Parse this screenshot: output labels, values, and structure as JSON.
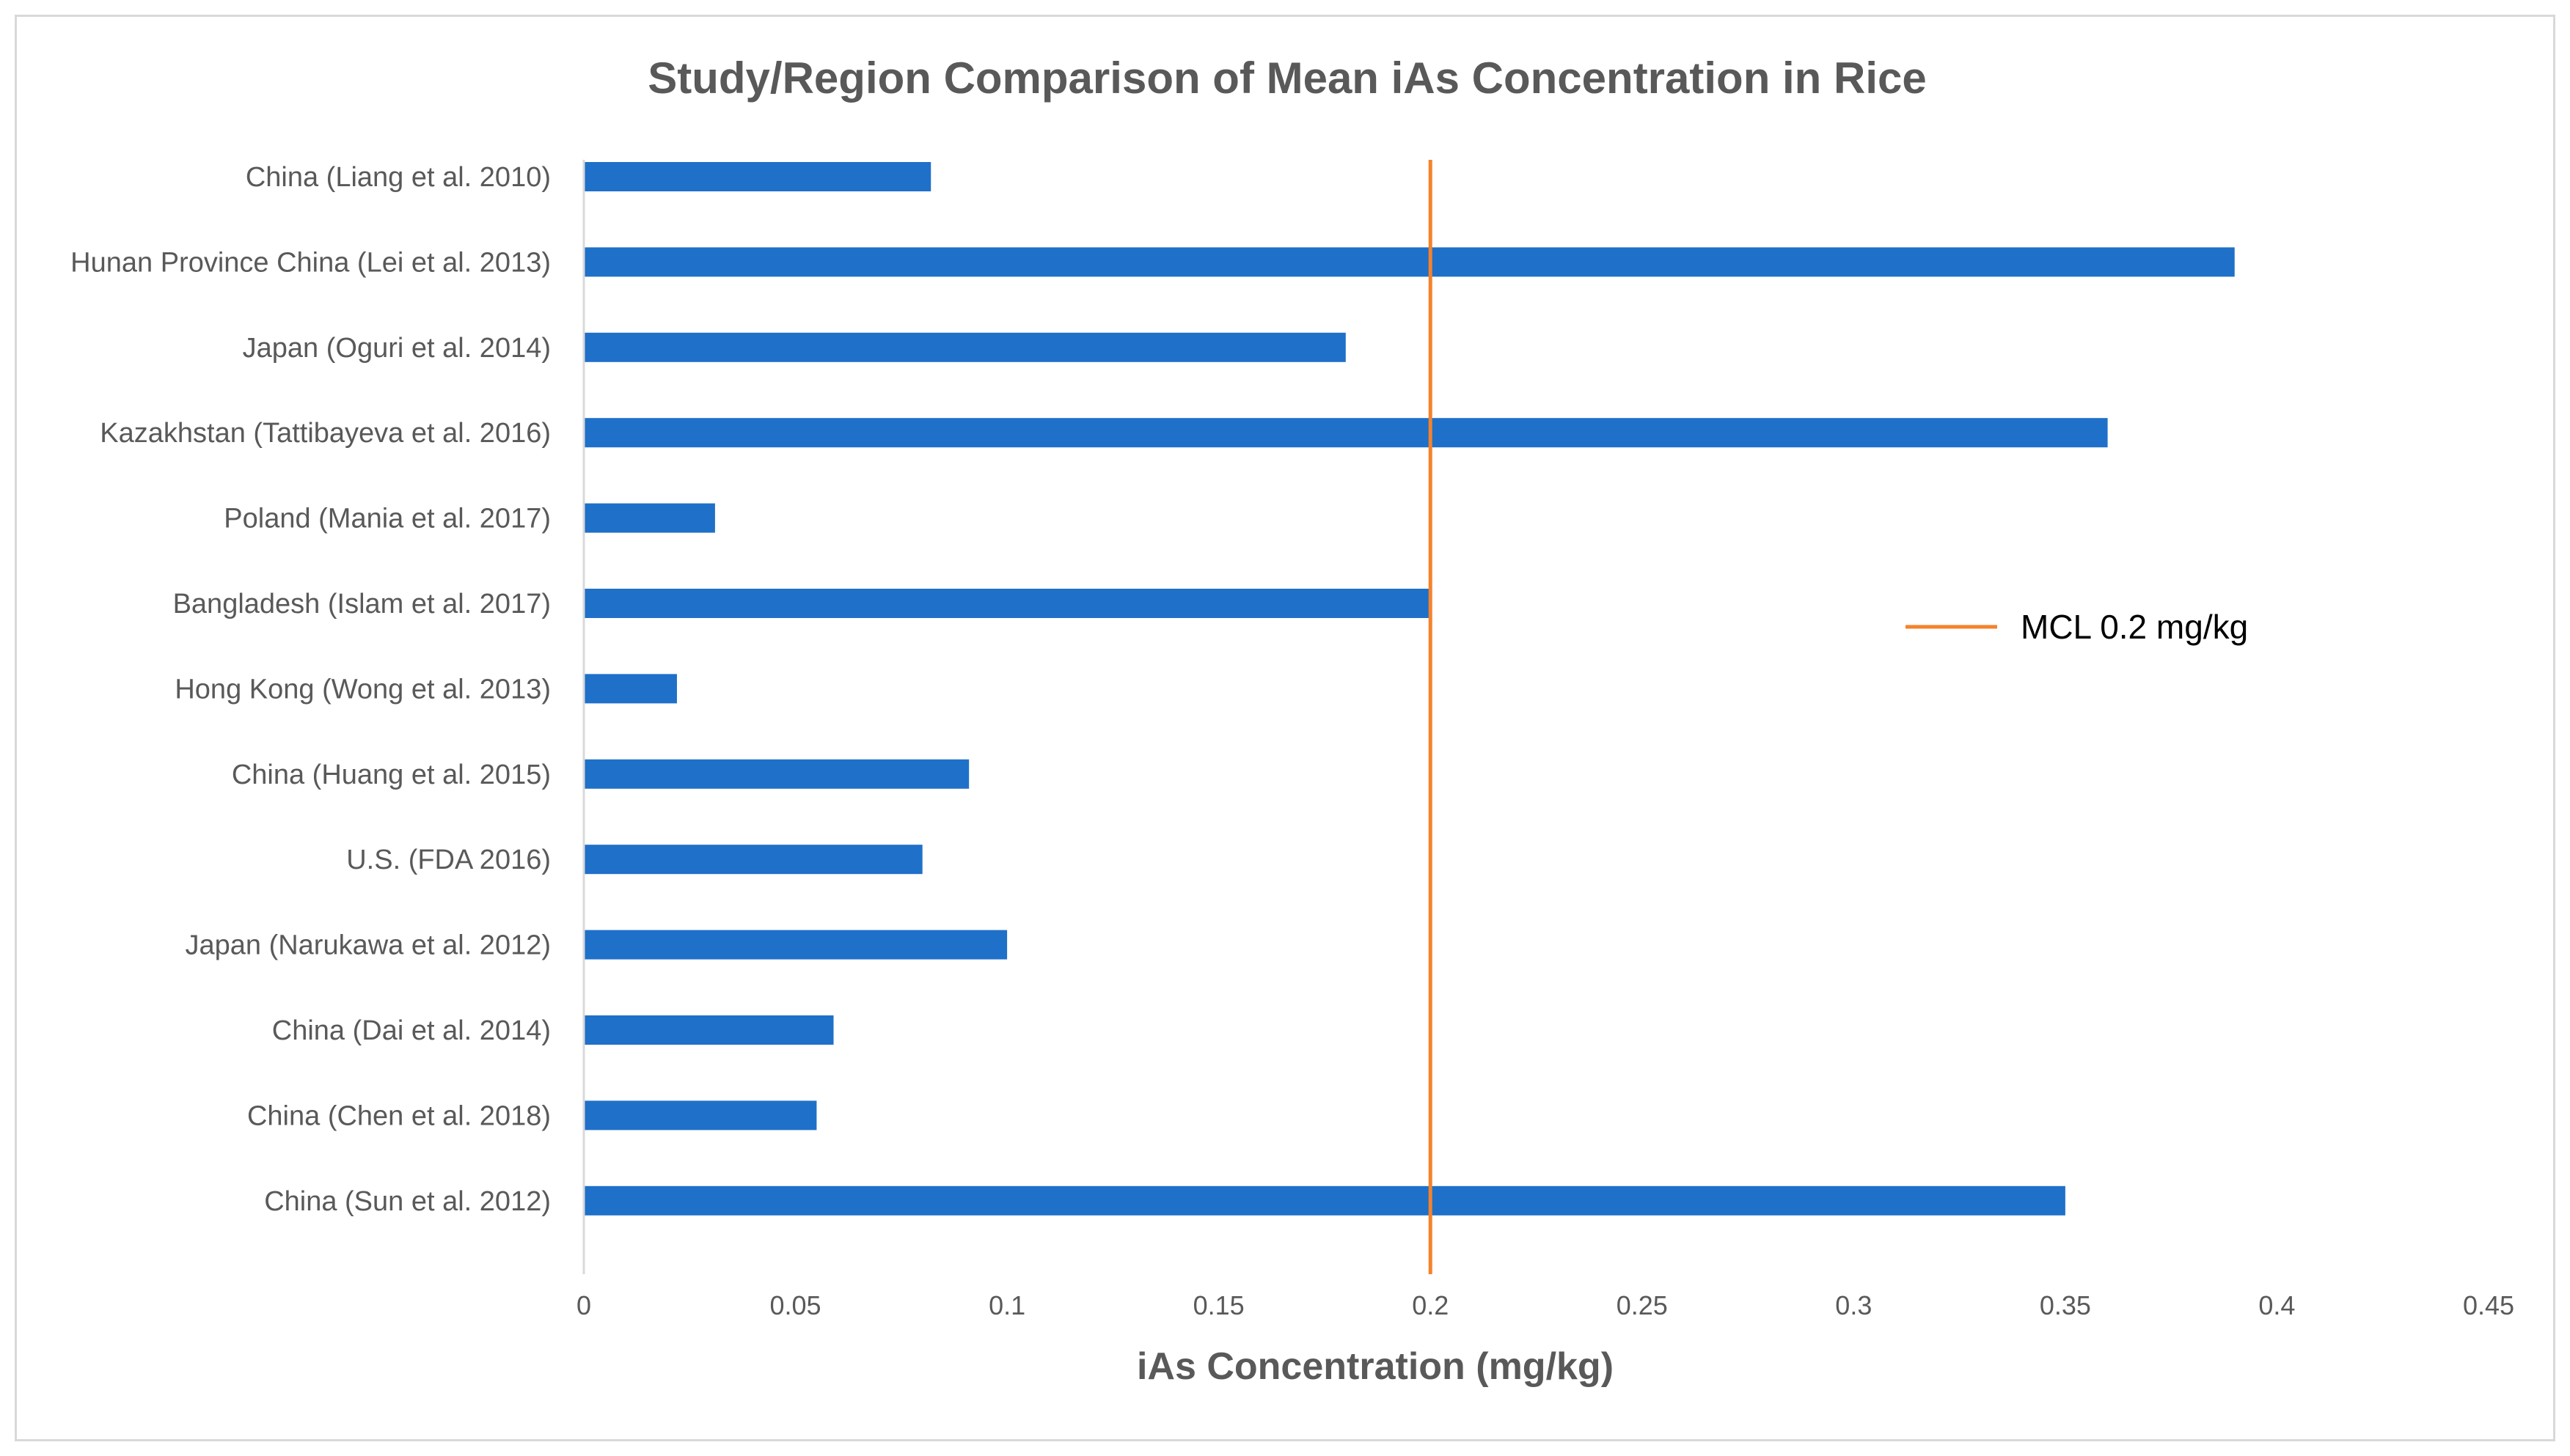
{
  "chart_data": {
    "type": "bar",
    "orientation": "horizontal",
    "title": "Study/Region Comparison of Mean iAs Concentration in Rice",
    "xlabel": "iAs Concentration (mg/kg)",
    "ylabel": "",
    "xlim": [
      0,
      0.45
    ],
    "xticks": [
      0,
      0.05,
      0.1,
      0.15,
      0.2,
      0.25,
      0.3,
      0.35,
      0.4,
      0.45
    ],
    "xtick_labels": [
      "0",
      "0.05",
      "0.1",
      "0.15",
      "0.2",
      "0.25",
      "0.3",
      "0.35",
      "0.4",
      "0.45"
    ],
    "categories": [
      "China (Liang et al. 2010)",
      "Hunan Province China (Lei et al. 2013)",
      "Japan (Oguri et al. 2014)",
      "Kazakhstan (Tattibayeva et al. 2016)",
      "Poland (Mania et al. 2017)",
      "Bangladesh (Islam et al. 2017)",
      "Hong Kong (Wong et al. 2013)",
      "China (Huang et al. 2015)",
      "U.S. (FDA 2016)",
      "Japan (Narukawa et al. 2012)",
      "China (Dai et al. 2014)",
      "China (Chen et al. 2018)",
      "China (Sun et al. 2012)"
    ],
    "values": [
      0.082,
      0.39,
      0.18,
      0.36,
      0.031,
      0.2,
      0.022,
      0.091,
      0.08,
      0.1,
      0.059,
      0.055,
      0.35
    ],
    "bar_color": "#1f70c8",
    "reference_line": {
      "value": 0.2,
      "label": "MCL 0.2 mg/kg",
      "color": "#f5822a"
    },
    "legend_position": "right",
    "grid": false
  }
}
